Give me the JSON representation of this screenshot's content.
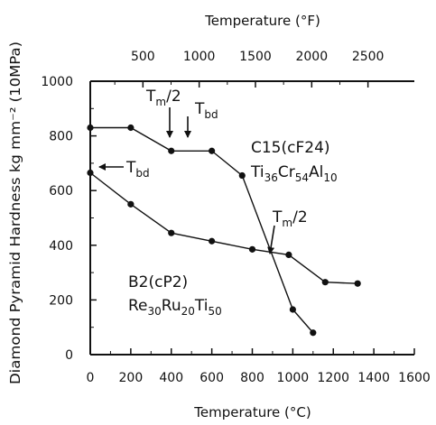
{
  "chart_data": {
    "type": "line",
    "title": "",
    "xlabel": "Temperature (°C)",
    "x2label": "Temperature (°F)",
    "ylabel": "Diamond Pyramid Hardness kg mm⁻² (10MPa)",
    "xlim": [
      0,
      1600
    ],
    "ylim": [
      0,
      1000
    ],
    "x_ticks": [
      0,
      200,
      400,
      600,
      800,
      1000,
      1200,
      1400,
      1600
    ],
    "y_ticks": [
      0,
      200,
      400,
      600,
      800,
      1000
    ],
    "x2_ticks": [
      500,
      1000,
      1500,
      2000,
      2500
    ],
    "grid": false,
    "series": [
      {
        "name": "C15(cF24) Ti36Cr54Al10",
        "x": [
          0,
          200,
          400,
          600,
          750,
          1000,
          1100
        ],
        "y": [
          830,
          830,
          745,
          745,
          655,
          165,
          80
        ]
      },
      {
        "name": "B2(cP2) Re30Ru20Ti50",
        "x": [
          0,
          200,
          400,
          600,
          800,
          980,
          1160,
          1320
        ],
        "y": [
          665,
          550,
          445,
          415,
          385,
          365,
          265,
          260
        ]
      }
    ],
    "annotations": {
      "c15_phase": "C15(cF24)",
      "c15_comp": {
        "a": "Ti",
        "a_sub": "36",
        "b": "Cr",
        "b_sub": "54",
        "c": "Al",
        "c_sub": "10"
      },
      "b2_phase": "B2(cP2)",
      "b2_comp": {
        "a": "Re",
        "a_sub": "30",
        "b": "Ru",
        "b_sub": "20",
        "c": "Ti",
        "c_sub": "50"
      },
      "tm2": {
        "main": "T",
        "sub": "m",
        "rest": "/2"
      },
      "tbd": {
        "main": "T",
        "sub": "bd"
      }
    }
  }
}
